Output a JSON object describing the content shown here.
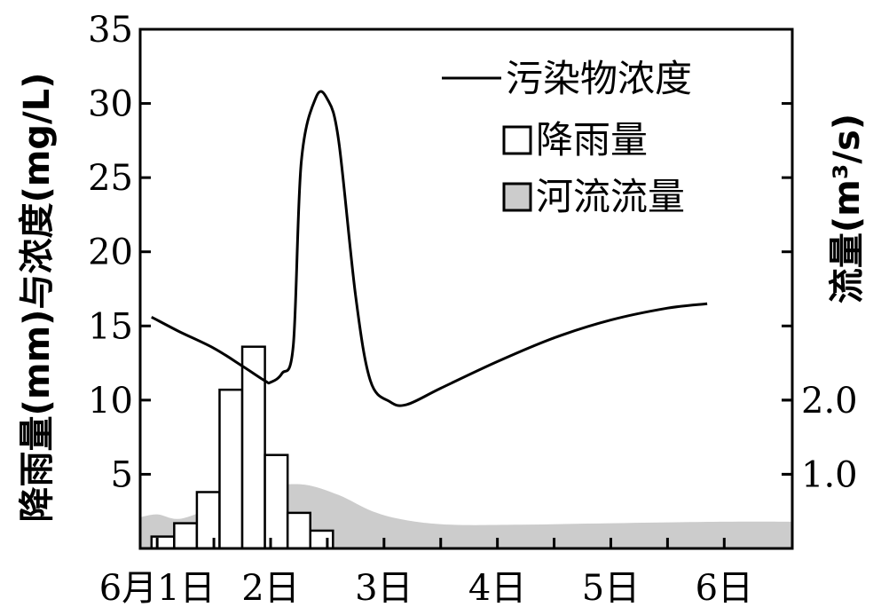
{
  "chart_data": {
    "type": "line",
    "left_axis": {
      "label": "降雨量(mm)与浓度(mg/L)",
      "ylim": [
        0,
        35
      ],
      "ticks": [
        "5",
        "10",
        "15",
        "20",
        "25",
        "30",
        "35"
      ]
    },
    "right_axis": {
      "label": "流量(m³/s)",
      "ticks": [
        "1.0",
        "2.0"
      ]
    },
    "x_axis": {
      "ticks": [
        "6月1日",
        "2日",
        "3日",
        "4日",
        "5日",
        "6日"
      ],
      "xlim": [
        0.85,
        6.6
      ]
    },
    "legend": {
      "position": "top-right",
      "items": [
        {
          "label": "污染物浓度",
          "symbol": "line"
        },
        {
          "label": "降雨量",
          "symbol": "white-box"
        },
        {
          "label": "河流流量",
          "symbol": "gray-box"
        }
      ]
    },
    "series": [
      {
        "name": "污染物浓度",
        "kind": "line",
        "axis": "left",
        "color": "#000000",
        "points": [
          [
            0.95,
            15.6
          ],
          [
            1.2,
            14.6
          ],
          [
            1.5,
            13.5
          ],
          [
            1.75,
            12.3
          ],
          [
            1.95,
            11.3
          ],
          [
            2.0,
            11.2
          ],
          [
            2.1,
            11.8
          ],
          [
            2.2,
            13.7
          ],
          [
            2.27,
            26.0
          ],
          [
            2.4,
            30.4
          ],
          [
            2.5,
            30.3
          ],
          [
            2.6,
            27.5
          ],
          [
            2.75,
            17.0
          ],
          [
            2.88,
            11.3
          ],
          [
            3.05,
            9.9
          ],
          [
            3.2,
            9.7
          ],
          [
            3.5,
            10.8
          ],
          [
            4.0,
            12.6
          ],
          [
            4.5,
            14.2
          ],
          [
            5.0,
            15.4
          ],
          [
            5.5,
            16.2
          ],
          [
            5.85,
            16.5
          ]
        ]
      },
      {
        "name": "降雨量",
        "kind": "bar",
        "axis": "left",
        "color": "#ffffff",
        "bar_width": 0.2,
        "bars": [
          [
            0.95,
            0.8
          ],
          [
            1.15,
            1.7
          ],
          [
            1.35,
            3.8
          ],
          [
            1.55,
            10.7
          ],
          [
            1.75,
            13.6
          ],
          [
            1.95,
            6.3
          ],
          [
            2.15,
            2.4
          ],
          [
            2.35,
            1.2
          ]
        ]
      },
      {
        "name": "河流流量",
        "kind": "area",
        "axis": "left",
        "color": "#cccccc",
        "points": [
          [
            0.85,
            2.1
          ],
          [
            1.0,
            2.3
          ],
          [
            1.2,
            2.0
          ],
          [
            1.5,
            2.8
          ],
          [
            1.8,
            3.7
          ],
          [
            2.0,
            4.2
          ],
          [
            2.3,
            4.3
          ],
          [
            2.6,
            3.6
          ],
          [
            2.9,
            2.5
          ],
          [
            3.2,
            1.9
          ],
          [
            3.6,
            1.6
          ],
          [
            4.2,
            1.6
          ],
          [
            5.0,
            1.7
          ],
          [
            6.0,
            1.8
          ],
          [
            6.6,
            1.8
          ]
        ]
      }
    ]
  }
}
